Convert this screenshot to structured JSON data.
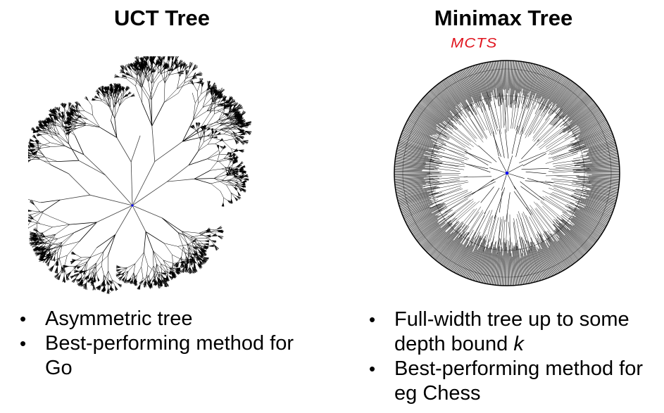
{
  "left": {
    "title": "UCT Tree",
    "bullets": [
      "Asymmetric tree",
      "Best-performing method for Go"
    ]
  },
  "right": {
    "title": "Minimax Tree",
    "annotation": "MCTS",
    "bullets": [
      "Full-width tree up to some depth bound k",
      "Best-performing method for eg Chess"
    ]
  },
  "colors": {
    "tree": "#000000",
    "root": "#1010ff",
    "annotation": "#e0141e"
  }
}
